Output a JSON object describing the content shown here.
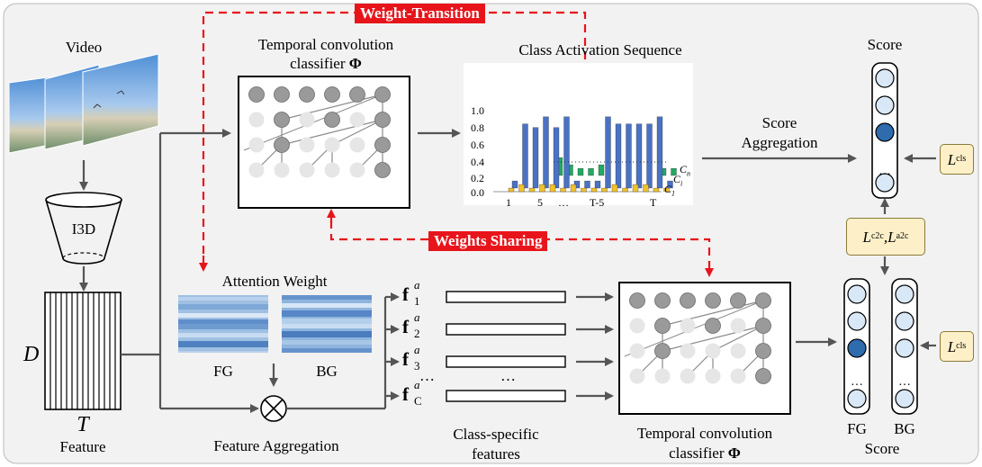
{
  "tags": {
    "weight_transition": "Weight-Transition",
    "weights_sharing": "Weights Sharing"
  },
  "labels": {
    "video": "Video",
    "i3d": "I3D",
    "d_symbol": "D",
    "t_symbol": "T",
    "feature": "Feature",
    "tcc_top_line1": "Temporal convolution",
    "tcc_top_line2": "classifier",
    "phi": "Φ",
    "cas_title": "Class Activation Sequence",
    "score_aggregation_line1": "Score",
    "score_aggregation_line2": "Aggregation",
    "score_top": "Score",
    "attention_weight": "Attention Weight",
    "fg_attn": "FG",
    "bg_attn": "BG",
    "feature_aggregation": "Feature Aggregation",
    "class_specific_line1": "Class-specific",
    "class_specific_line2": "features",
    "tcc_bottom_line1": "Temporal convolution",
    "tcc_bottom_line2": "classifier",
    "fg_score": "FG",
    "bg_score": "BG",
    "score_bottom": "Score",
    "dots": "…",
    "otimes": "⊗"
  },
  "features": {
    "symbol": "f",
    "superscript": "a",
    "subscripts": [
      "1",
      "2",
      "3",
      "C"
    ]
  },
  "losses": {
    "cls_top": {
      "script": "L",
      "sub": "cls"
    },
    "mid": {
      "a": "L",
      "a_sub": "c2c",
      "sep": ",",
      "b": "L",
      "b_sub": "a2c"
    },
    "cls_bottom": {
      "script": "L",
      "sub": "cls"
    }
  },
  "colors": {
    "red_accent": "#e8141b",
    "panel_bg": "#f2f2f2",
    "node_gray": "#9a9a9a",
    "node_light": "#e6e6e6",
    "score_fill": "#d9e8f7",
    "score_active": "#2e6cae",
    "blue_bar": "#4a72c4",
    "green_bar": "#24a862",
    "yellow_bar": "#f2c12a"
  },
  "chart_data": {
    "type": "bar",
    "title": "Class Activation Sequence",
    "y_ticks": [
      "0.0",
      "0.2",
      "0.4",
      "0.6",
      "0.8",
      "1.0"
    ],
    "x_ticks": [
      "1",
      "5",
      "…",
      "T-5",
      "T"
    ],
    "ylim": [
      0,
      1.2
    ],
    "series": [
      {
        "name": "C_n",
        "color": "#4a72c4",
        "values": [
          0.1,
          0.9,
          0.85,
          1.0,
          0.85,
          1.0,
          0.1,
          0.1,
          0.1,
          1.0,
          0.9,
          0.9,
          0.9,
          0.9,
          1.0,
          0.1
        ]
      },
      {
        "name": "",
        "color": "#24a862",
        "values": [
          0.0,
          0.0,
          0.0,
          0.0,
          0.25,
          0.15,
          0.1,
          0.1,
          0.15,
          0.0,
          0.0,
          0.0,
          0.0,
          0.0,
          0.1,
          0.1
        ]
      },
      {
        "name": "C_1",
        "color": "#f2c12a",
        "values": [
          0.05,
          0.1,
          0.05,
          0.1,
          0.1,
          0.05,
          0.1,
          0.05,
          0.05,
          0.05,
          0.1,
          0.05,
          0.1,
          0.1,
          0.05,
          0.05
        ]
      }
    ],
    "series_labels": {
      "cn": "C",
      "cn_sub": "n",
      "c1": "C",
      "c1_sub": "1",
      "ci": "C",
      "ci_sub": "i"
    }
  }
}
